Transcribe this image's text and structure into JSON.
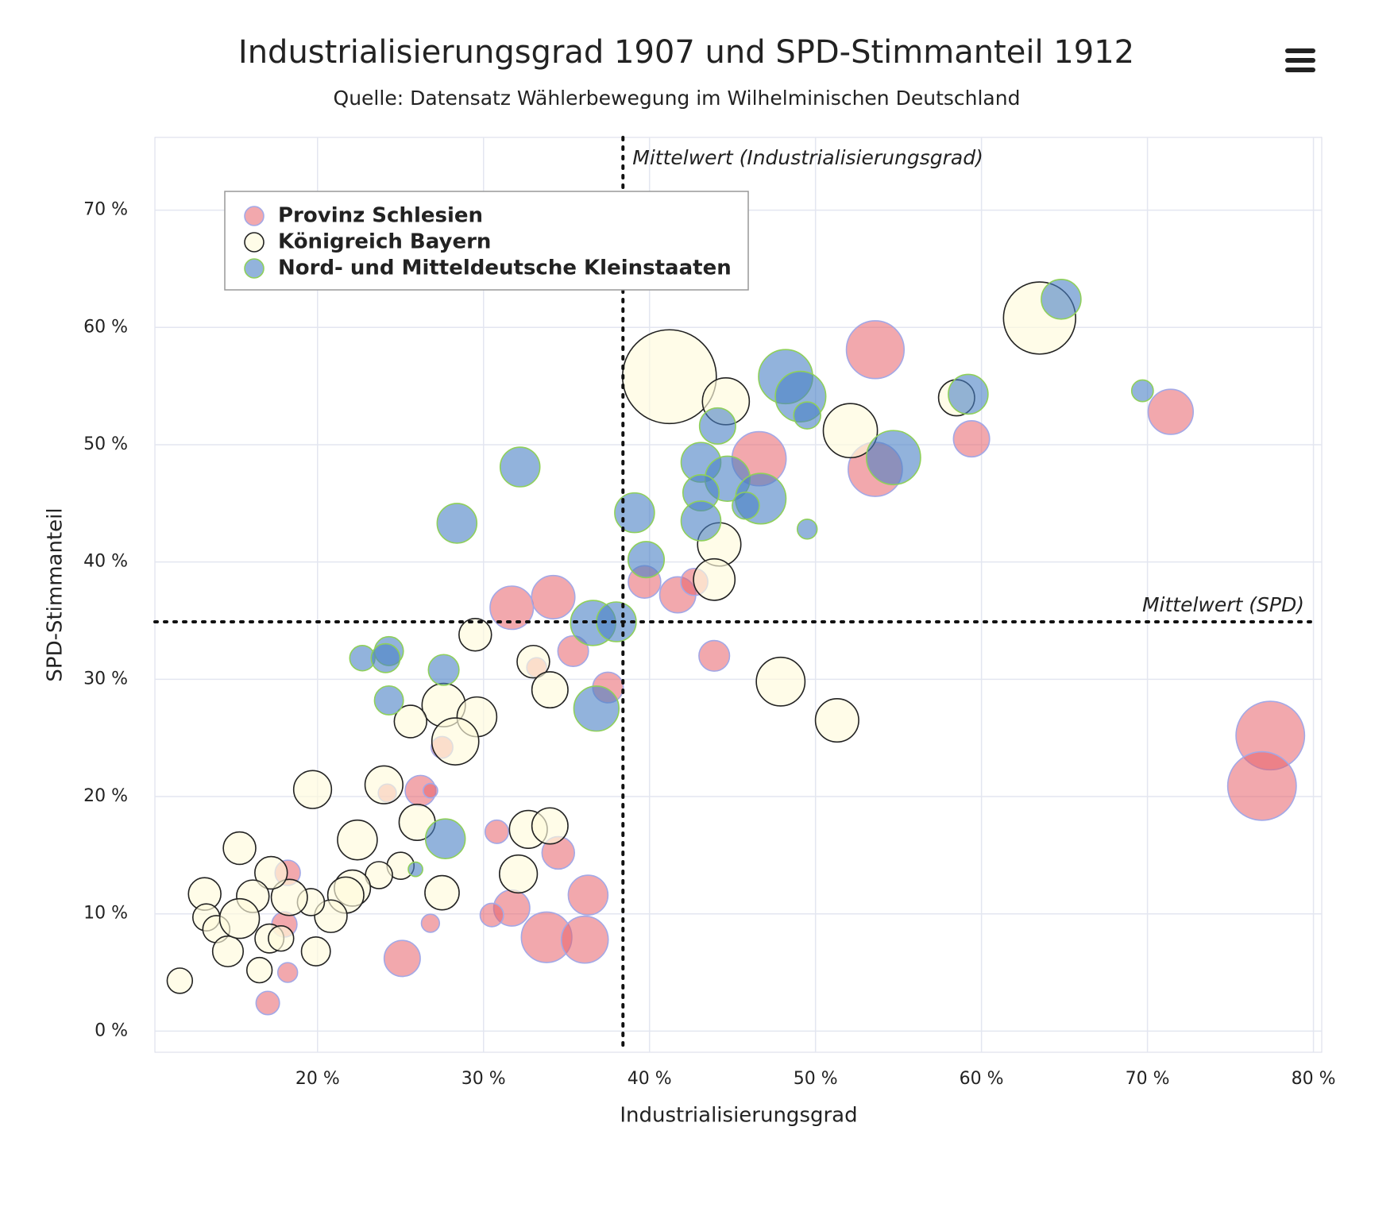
{
  "chart_data": {
    "type": "bubble",
    "title": "Industrialisierungsgrad 1907 und SPD-Stimmanteil 1912",
    "subtitle": "Quelle: Datensatz Wählerbewegung im Wilhelminischen Deutschland",
    "x_label": "Industrialisierungsgrad",
    "y_label": "SPD-Stimmanteil",
    "xlim": [
      10.2,
      80.5
    ],
    "ylim": [
      -1.8,
      76.2
    ],
    "xticks": [
      {
        "value": 20,
        "label": "20 %"
      },
      {
        "value": 30,
        "label": "30 %"
      },
      {
        "value": 40,
        "label": "40 %"
      },
      {
        "value": 50,
        "label": "50 %"
      },
      {
        "value": 60,
        "label": "60 %"
      },
      {
        "value": 70,
        "label": "70 %"
      },
      {
        "value": 80,
        "label": "80 %"
      }
    ],
    "yticks": [
      {
        "value": 0,
        "label": "0 %"
      },
      {
        "value": 10,
        "label": "10 %"
      },
      {
        "value": 20,
        "label": "20 %"
      },
      {
        "value": 30,
        "label": "30 %"
      },
      {
        "value": 40,
        "label": "40 %"
      },
      {
        "value": 50,
        "label": "50 %"
      },
      {
        "value": 60,
        "label": "60 %"
      },
      {
        "value": 70,
        "label": "70 %"
      }
    ],
    "grid": true,
    "legend": "top-left",
    "plot_lines": {
      "x": {
        "value": 38.4,
        "label": "Mittelwert (Industrialisierungsgrad)"
      },
      "y": {
        "value": 34.9,
        "label": "Mittelwert (SPD)"
      }
    },
    "series": [
      {
        "name": "Provinz Schlesien",
        "color": "rgba(232,96,106,0.55)",
        "border_color": "#a3a8e6",
        "x": [
          53.6,
          71.4,
          59.4,
          46.6,
          53.6,
          41.7,
          39.7,
          42.7,
          31.7,
          34.2,
          35.4,
          37.5,
          43.9,
          77.4,
          76.9,
          26.2,
          26.8,
          24.2,
          30.8,
          34.5,
          36.3,
          31.7,
          30.5,
          33.8,
          36.1,
          25.1,
          26.8,
          18.2,
          18.0,
          18.2,
          17.0,
          27.5,
          33.2
        ],
        "values": [
          58.1,
          52.8,
          50.5,
          48.8,
          47.9,
          37.2,
          38.3,
          38.3,
          36.1,
          37.0,
          32.4,
          29.3,
          32.0,
          25.2,
          20.9,
          20.5,
          20.5,
          20.3,
          17.0,
          15.2,
          11.6,
          10.5,
          9.9,
          8.0,
          7.8,
          6.2,
          9.2,
          13.5,
          9.1,
          5.0,
          2.4,
          24.2,
          31.0
        ],
        "z": [
          256,
          156,
          100,
          225,
          225,
          100,
          81,
          56,
          144,
          144,
          72,
          72,
          72,
          361,
          361,
          72,
          16,
          25,
          42,
          81,
          121,
          100,
          42,
          196,
          169,
          100,
          25,
          49,
          49,
          30,
          42,
          36,
          30
        ]
      },
      {
        "name": "Königreich Bayern",
        "color": "rgba(255,250,220,0.65)",
        "border_color": "#222222",
        "x": [
          63.5,
          41.2,
          44.6,
          52.1,
          58.5,
          44.2,
          43.9,
          47.9,
          51.3,
          29.5,
          33.0,
          34.0,
          27.6,
          29.6,
          28.3,
          25.6,
          19.7,
          24.0,
          26.0,
          22.4,
          32.7,
          34.0,
          32.1,
          27.5,
          25.0,
          23.7,
          22.1,
          21.7,
          20.8,
          19.6,
          19.9,
          18.3,
          17.2,
          16.1,
          15.3,
          13.2,
          13.3,
          13.9,
          14.6,
          15.3,
          16.5,
          17.1,
          17.8,
          11.7
        ],
        "values": [
          60.8,
          55.8,
          53.7,
          51.2,
          54.0,
          41.5,
          38.5,
          29.8,
          26.5,
          33.8,
          31.5,
          29.1,
          27.8,
          26.8,
          24.7,
          26.4,
          20.6,
          21.0,
          17.8,
          16.3,
          17.2,
          17.5,
          13.4,
          11.8,
          14.1,
          13.3,
          12.2,
          11.6,
          9.8,
          11.0,
          6.8,
          11.4,
          13.5,
          11.5,
          15.6,
          11.7,
          9.7,
          8.7,
          6.8,
          9.6,
          5.2,
          7.9,
          7.9,
          4.3
        ],
        "z": [
          400,
          676,
          169,
          225,
          100,
          144,
          132,
          182,
          144,
          81,
          81,
          100,
          144,
          121,
          169,
          81,
          110,
          110,
          100,
          121,
          110,
          100,
          110,
          90,
          56,
          56,
          100,
          100,
          81,
          56,
          64,
          100,
          81,
          81,
          81,
          81,
          56,
          56,
          72,
          121,
          49,
          64,
          49,
          49
        ]
      },
      {
        "name": "Nord- und Mitteldeutsche Kleinstaaten",
        "color": "rgba(74,128,196,0.6)",
        "border_color": "#8fd05a",
        "x": [
          64.8,
          48.2,
          49.1,
          49.5,
          59.2,
          69.7,
          54.7,
          44.1,
          43.1,
          44.7,
          43.1,
          46.7,
          45.8,
          43.1,
          49.5,
          32.2,
          28.4,
          39.1,
          39.8,
          36.6,
          38.0,
          22.7,
          24.3,
          24.1,
          27.6,
          24.3,
          36.8,
          27.7,
          25.9
        ],
        "values": [
          62.4,
          55.8,
          54.1,
          52.5,
          54.3,
          54.6,
          48.9,
          51.6,
          48.5,
          47.1,
          45.9,
          45.4,
          44.8,
          43.5,
          42.8,
          48.1,
          43.3,
          44.2,
          40.2,
          34.8,
          34.9,
          31.8,
          32.4,
          31.8,
          30.8,
          28.2,
          27.5,
          16.4,
          13.8
        ],
        "z": [
          121,
          225,
          196,
          56,
          121,
          36,
          225,
          100,
          121,
          156,
          100,
          196,
          56,
          121,
          30,
          121,
          121,
          121,
          100,
          156,
          121,
          49,
          64,
          64,
          72,
          64,
          156,
          121,
          16
        ]
      }
    ]
  }
}
